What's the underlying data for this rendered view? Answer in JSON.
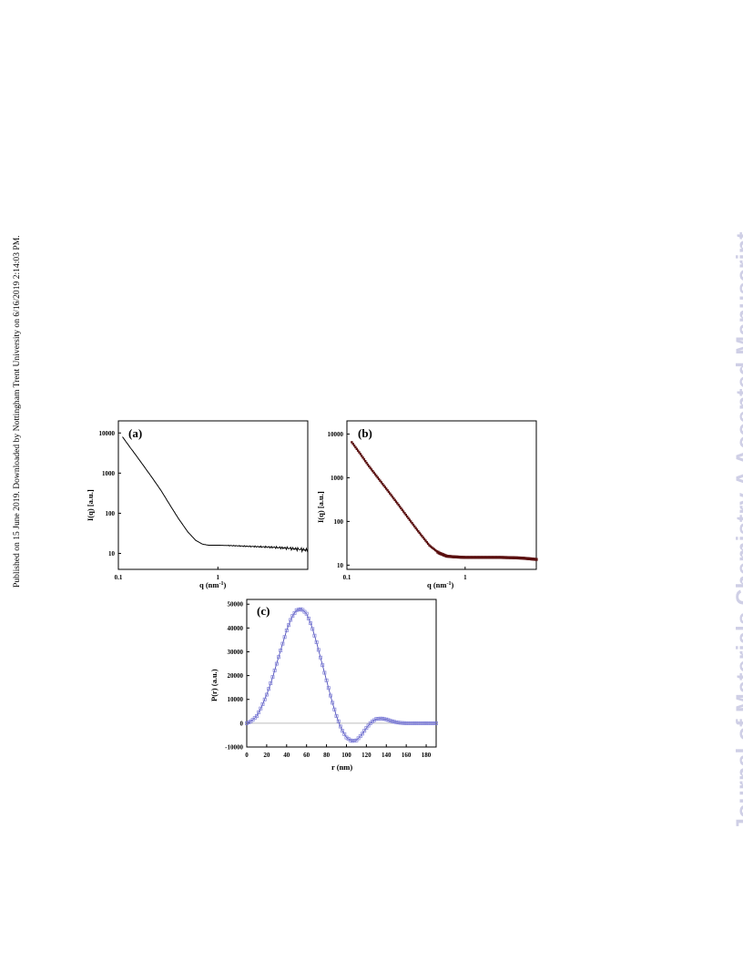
{
  "side_note": "Published on 15 June 2019. Downloaded by Nottingham Trent University on 6/16/2019 2:14:03 PM.",
  "watermark": "Journal of Materials Chemistry A Accepted Manuscript",
  "colors": {
    "curve_a": "#000000",
    "markers_b": "#5a0f0f",
    "fit_b": "#c23b2a",
    "markers_c": "#7f7fd8",
    "zero_line_c": "#bdbdbd"
  },
  "chart_data": [
    {
      "panel": "(a)",
      "type": "line",
      "xlabel": "q (nm",
      "xlabel_sup": "-1",
      "xlabel_close": ")",
      "ylabel": "I(q) [a.u.]",
      "xscale": "log",
      "yscale": "log",
      "xlim": [
        0.1,
        8
      ],
      "ylim": [
        4,
        20000
      ],
      "xticks": [
        0.1,
        1
      ],
      "xtick_labels": [
        "0.1",
        "1"
      ],
      "yticks": [
        10,
        100,
        1000,
        10000
      ],
      "ytick_labels": [
        "10",
        "100",
        "1000",
        "10000"
      ],
      "x": [
        0.11,
        0.13,
        0.15,
        0.18,
        0.22,
        0.27,
        0.33,
        0.4,
        0.5,
        0.6,
        0.7,
        0.8,
        1.0,
        1.5,
        2.0,
        3.0,
        4.0,
        5.0,
        6.0,
        7.0,
        8.0
      ],
      "y": [
        8000,
        4500,
        2800,
        1500,
        750,
        360,
        160,
        75,
        34,
        21,
        17,
        16,
        16,
        15.5,
        15,
        14.5,
        14,
        13.5,
        13,
        12.5,
        12
      ]
    },
    {
      "panel": "(b)",
      "type": "scatter",
      "xlabel": "q (nm",
      "xlabel_sup": "-1",
      "xlabel_close": ")",
      "ylabel": "I(q) [a.u.]",
      "xscale": "log",
      "yscale": "log",
      "xlim": [
        0.1,
        4
      ],
      "ylim": [
        8,
        20000
      ],
      "xticks": [
        0.1,
        1
      ],
      "xtick_labels": [
        "0.1",
        "1"
      ],
      "yticks": [
        10,
        100,
        1000,
        10000
      ],
      "ytick_labels": [
        "10",
        "100",
        "1000",
        "10000"
      ],
      "x": [
        0.11,
        0.13,
        0.15,
        0.18,
        0.22,
        0.27,
        0.33,
        0.4,
        0.5,
        0.6,
        0.7,
        0.8,
        1.0,
        1.5,
        2.0,
        2.5,
        3.0,
        3.5,
        4.0
      ],
      "y": [
        6500,
        3500,
        2000,
        1050,
        520,
        250,
        120,
        60,
        28,
        19,
        16,
        15.5,
        15,
        15,
        15,
        14.8,
        14.5,
        14,
        13.5
      ]
    },
    {
      "panel": "(c)",
      "type": "scatter",
      "xlabel": "r (nm)",
      "ylabel": "P(r) (a.u.)",
      "xlim": [
        0,
        190
      ],
      "ylim": [
        -10000,
        52000
      ],
      "xticks": [
        0,
        20,
        40,
        60,
        80,
        100,
        120,
        140,
        160,
        180
      ],
      "xtick_labels": [
        "0",
        "20",
        "40",
        "60",
        "80",
        "100",
        "120",
        "140",
        "160",
        "180"
      ],
      "yticks": [
        -10000,
        0,
        10000,
        20000,
        30000,
        40000,
        50000
      ],
      "ytick_labels": [
        "-10000",
        "0",
        "10000",
        "20000",
        "30000",
        "40000",
        "50000"
      ],
      "x": [
        0,
        5,
        10,
        15,
        20,
        25,
        30,
        35,
        40,
        45,
        50,
        55,
        60,
        65,
        70,
        75,
        80,
        85,
        90,
        95,
        100,
        105,
        110,
        115,
        120,
        125,
        130,
        135,
        140,
        145,
        150,
        155,
        160,
        165,
        170,
        175,
        180,
        185,
        190
      ],
      "y": [
        0,
        1000,
        3000,
        7000,
        12000,
        18000,
        25000,
        32000,
        39000,
        44500,
        47500,
        48000,
        46000,
        41000,
        34000,
        26000,
        18000,
        10000,
        3000,
        -2500,
        -6000,
        -7500,
        -7200,
        -5000,
        -2000,
        500,
        1800,
        2000,
        1600,
        900,
        400,
        100,
        0,
        0,
        0,
        0,
        0,
        0,
        0
      ]
    }
  ]
}
